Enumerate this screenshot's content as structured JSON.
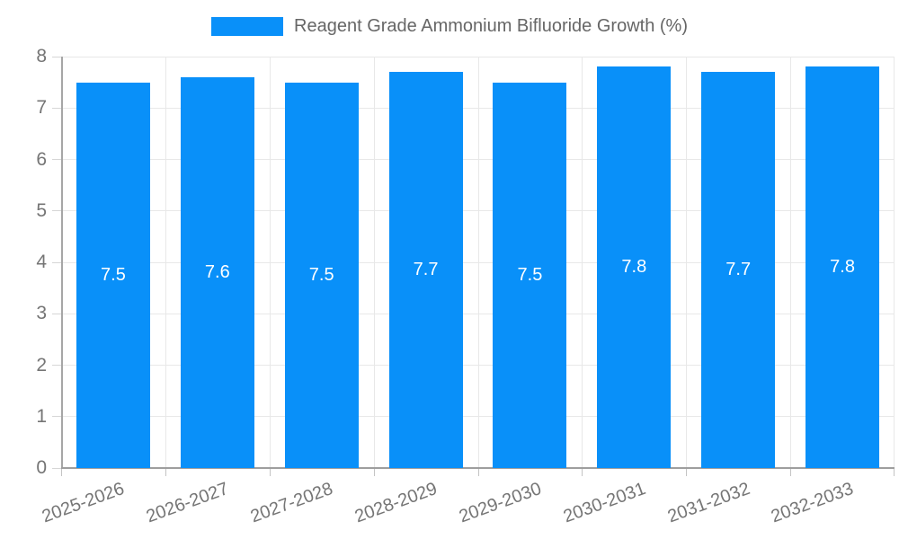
{
  "legend": {
    "label": "Reagent Grade Ammonium Bifluoride Growth (%)"
  },
  "chart_data": {
    "type": "bar",
    "title": "Reagent Grade Ammonium Bifluoride Growth (%)",
    "categories": [
      "2025-2026",
      "2026-2027",
      "2027-2028",
      "2028-2029",
      "2029-2030",
      "2030-2031",
      "2031-2032",
      "2032-2033"
    ],
    "values": [
      7.5,
      7.6,
      7.5,
      7.7,
      7.5,
      7.8,
      7.7,
      7.8
    ],
    "xlabel": "",
    "ylabel": "",
    "ylim": [
      0,
      8
    ],
    "ytick_step": 1,
    "yticks": [
      0,
      1,
      2,
      3,
      4,
      5,
      6,
      7,
      8
    ],
    "grid": true,
    "legend_position": "top",
    "bar_color": "#0990F9",
    "value_label_color": "#FFFFFF",
    "axis_text_color": "#757575",
    "grid_color": "#E8E8E8"
  }
}
